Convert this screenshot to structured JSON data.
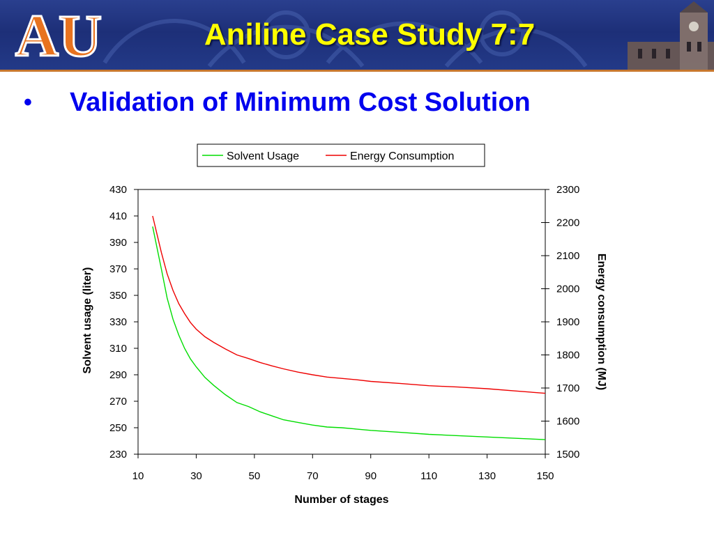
{
  "slide": {
    "title": "Aniline Case Study 7:7",
    "bullet": "Validation of Minimum Cost Solution",
    "logo": "AU"
  },
  "colors": {
    "header_bg": "#1d2f78",
    "title": "#ffff00",
    "bullet": "#0000ee",
    "logo_orange": "#e8731f",
    "solvent_series": "#00dd00",
    "energy_series": "#ee0000"
  },
  "chart_data": {
    "type": "line",
    "xlabel": "Number of stages",
    "ylabel": "Solvent usage (liter)",
    "y2label": "Energy consumption (MJ)",
    "xlim": [
      10,
      150
    ],
    "ylim": [
      230,
      430
    ],
    "y2lim": [
      1500,
      2300
    ],
    "xticks": [
      10,
      30,
      50,
      70,
      90,
      110,
      130,
      150
    ],
    "yticks": [
      230,
      250,
      270,
      290,
      310,
      330,
      350,
      370,
      390,
      410,
      430
    ],
    "y2ticks": [
      1500,
      1600,
      1700,
      1800,
      1900,
      2000,
      2100,
      2200,
      2300
    ],
    "legend_position": "top",
    "series": [
      {
        "name": "Solvent Usage",
        "axis": "left",
        "color": "#00dd00",
        "x": [
          15,
          18,
          20,
          22,
          24,
          26,
          28,
          30,
          33,
          36,
          40,
          44,
          48,
          52,
          56,
          60,
          65,
          70,
          75,
          80,
          85,
          90,
          100,
          110,
          120,
          130,
          140,
          150
        ],
        "y": [
          402,
          370,
          348,
          332,
          320,
          310,
          302,
          296,
          288,
          282,
          275,
          269,
          266,
          262,
          259,
          256,
          254,
          252,
          250.5,
          250,
          249,
          248,
          246.5,
          245,
          244,
          243,
          242,
          241
        ]
      },
      {
        "name": "Energy Consumption",
        "axis": "right",
        "color": "#ee0000",
        "x": [
          15,
          18,
          20,
          22,
          24,
          26,
          28,
          30,
          33,
          36,
          40,
          44,
          48,
          52,
          56,
          60,
          65,
          70,
          75,
          80,
          85,
          90,
          100,
          110,
          120,
          130,
          140,
          150
        ],
        "y": [
          2220,
          2110,
          2045,
          1995,
          1955,
          1925,
          1898,
          1878,
          1855,
          1838,
          1818,
          1800,
          1789,
          1777,
          1767,
          1758,
          1748,
          1740,
          1733,
          1729,
          1725,
          1720,
          1714,
          1707,
          1703,
          1698,
          1691,
          1684
        ]
      }
    ]
  }
}
